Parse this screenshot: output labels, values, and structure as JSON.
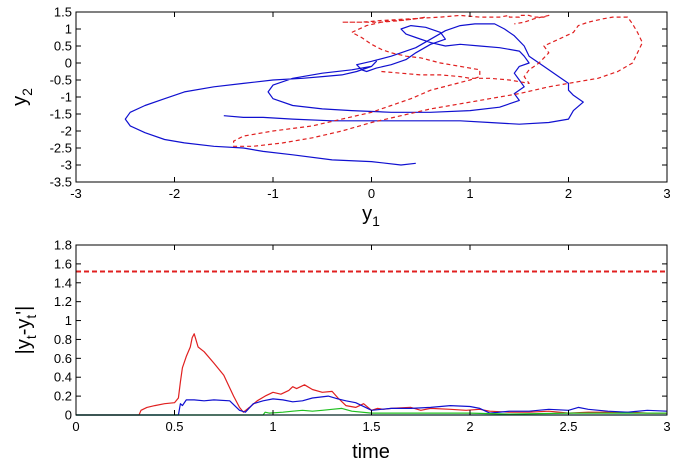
{
  "chart_data": [
    {
      "type": "line",
      "xlabel": "y",
      "xlabel_sub": "1",
      "ylabel": "y",
      "ylabel_sub": "2",
      "xlim": [
        -3,
        3
      ],
      "ylim": [
        -3.5,
        1.5
      ],
      "xticks": [
        "-3",
        "-2",
        "-1",
        "0",
        "1",
        "2",
        "3"
      ],
      "yticks": [
        "-3.5",
        "-3",
        "-2.5",
        "-2",
        "-1.5",
        "-1",
        "-0.5",
        "0",
        "0.5",
        "1",
        "1.5"
      ],
      "grid": false,
      "series": [
        {
          "color": "#1010d0",
          "style": "solid",
          "x": [
            0.45,
            0.3,
            0.0,
            -0.4,
            -0.8,
            -1.1,
            -1.3,
            -1.6,
            -1.9,
            -2.1,
            -2.3,
            -2.45,
            -2.5,
            -2.45,
            -2.3,
            -2.1,
            -1.9,
            -1.6,
            -1.3,
            -1.0,
            -0.7,
            -0.5,
            -0.3,
            -0.15,
            0.0,
            0.05,
            0.0,
            -0.2,
            -0.5,
            -0.8,
            -1.0,
            -1.05,
            -1.0,
            -0.8,
            -0.5,
            -0.2,
            0.2,
            0.6,
            1.0,
            1.3,
            1.5,
            1.45,
            1.55,
            1.5,
            1.45,
            1.5,
            1.6,
            1.55,
            1.5,
            1.3,
            1.1,
            0.9,
            0.75,
            0.6,
            0.45,
            0.35,
            0.3,
            0.4,
            0.55,
            0.7,
            0.75,
            0.6,
            0.45,
            0.35,
            0.2,
            0.05,
            -0.05,
            -0.1,
            -0.15,
            0.0,
            0.2,
            0.45,
            0.6,
            0.75,
            0.9,
            1.05,
            1.25,
            1.35,
            1.45,
            1.55,
            1.6,
            1.75,
            1.9,
            2.0,
            2.0,
            2.05,
            2.15,
            2.05,
            2.0,
            1.8,
            1.5,
            1.2,
            0.9,
            0.6,
            0.3,
            0.0,
            -0.4,
            -0.8,
            -1.1,
            -1.3,
            -1.5,
            -1.5
          ],
          "y": [
            -2.95,
            -3.0,
            -2.9,
            -2.85,
            -2.7,
            -2.6,
            -2.5,
            -2.45,
            -2.35,
            -2.25,
            -2.05,
            -1.85,
            -1.65,
            -1.45,
            -1.25,
            -1.05,
            -0.85,
            -0.7,
            -0.6,
            -0.5,
            -0.45,
            -0.4,
            -0.35,
            -0.25,
            -0.1,
            0.05,
            -0.1,
            -0.2,
            -0.3,
            -0.45,
            -0.65,
            -0.85,
            -1.05,
            -1.25,
            -1.35,
            -1.4,
            -1.45,
            -1.45,
            -1.4,
            -1.3,
            -1.1,
            -0.9,
            -0.7,
            -0.5,
            -0.3,
            -0.1,
            0.0,
            0.2,
            0.35,
            0.45,
            0.5,
            0.55,
            0.5,
            0.6,
            0.75,
            0.85,
            1.0,
            1.1,
            1.05,
            0.9,
            0.7,
            0.55,
            0.3,
            0.1,
            -0.05,
            -0.15,
            -0.25,
            -0.2,
            -0.05,
            0.05,
            0.2,
            0.45,
            0.7,
            0.95,
            1.1,
            1.15,
            1.15,
            1.0,
            0.8,
            0.5,
            0.2,
            -0.1,
            -0.4,
            -0.6,
            -0.8,
            -0.95,
            -1.15,
            -1.4,
            -1.65,
            -1.75,
            -1.8,
            -1.75,
            -1.7,
            -1.7,
            -1.7,
            -1.7,
            -1.7,
            -1.65,
            -1.6,
            -1.6,
            -1.55,
            -1.55
          ]
        },
        {
          "color": "#e02020",
          "style": "dashed",
          "x": [
            0.1,
            0.3,
            0.5,
            0.7,
            0.9,
            1.0,
            1.2,
            1.4,
            1.5,
            1.6,
            1.55,
            1.6,
            1.7,
            1.8,
            1.75,
            1.9,
            2.05,
            2.1,
            2.2,
            2.35,
            2.45,
            2.6,
            2.65,
            2.7,
            2.75,
            2.7,
            2.65,
            2.5,
            2.3,
            2.1,
            1.8,
            1.5,
            1.2,
            0.9,
            0.6,
            0.3,
            0.0,
            -0.3,
            -0.6,
            -0.9,
            -1.2,
            -1.4,
            -1.4,
            -1.3,
            -1.0,
            -0.6,
            -0.3,
            0.0,
            0.2,
            0.4,
            0.6,
            0.8,
            1.0,
            1.1,
            1.1,
            0.9,
            0.7,
            0.5,
            0.35,
            0.2,
            0.1,
            0.0,
            -0.1,
            -0.2,
            -0.05,
            0.1,
            0.2,
            0.3,
            0.45,
            0.55,
            0.55,
            0.45,
            0.3,
            0.1,
            -0.1,
            -0.3,
            -0.3,
            -0.1,
            0.1,
            0.4,
            0.7,
            0.9,
            1.1,
            1.3,
            1.4,
            1.4,
            1.5,
            1.5,
            1.6,
            1.65,
            1.75,
            1.8,
            1.65,
            1.55,
            1.45
          ],
          "y": [
            -0.25,
            -0.3,
            -0.35,
            -0.35,
            -0.4,
            -0.45,
            -0.45,
            -0.5,
            -0.55,
            -0.6,
            -0.4,
            -0.2,
            0.0,
            0.3,
            0.5,
            0.7,
            0.9,
            1.1,
            1.2,
            1.3,
            1.35,
            1.35,
            1.15,
            0.9,
            0.6,
            0.3,
            0.0,
            -0.25,
            -0.45,
            -0.55,
            -0.7,
            -0.9,
            -1.05,
            -1.2,
            -1.35,
            -1.55,
            -1.75,
            -2.0,
            -2.2,
            -2.35,
            -2.45,
            -2.45,
            -2.3,
            -2.15,
            -2.0,
            -1.85,
            -1.65,
            -1.45,
            -1.25,
            -1.05,
            -0.8,
            -0.65,
            -0.5,
            -0.4,
            -0.2,
            -0.1,
            0.0,
            0.15,
            0.2,
            0.3,
            0.4,
            0.55,
            0.75,
            0.9,
            1.1,
            1.2,
            1.25,
            1.25,
            1.3,
            1.35,
            1.35,
            1.3,
            1.25,
            1.2,
            1.2,
            1.2,
            1.2,
            1.2,
            1.25,
            1.3,
            1.35,
            1.4,
            1.35,
            1.35,
            1.4,
            1.35,
            1.35,
            1.4,
            1.4,
            1.35,
            1.35,
            1.4,
            1.3,
            1.2,
            1.15
          ]
        }
      ]
    },
    {
      "type": "line",
      "xlabel": "time",
      "ylabel": "|y",
      "ylabel_sub_a": "t",
      "ylabel_mid": "-y",
      "ylabel_sub_b": "t",
      "ylabel_tail": "'|",
      "xlim": [
        0,
        3
      ],
      "ylim": [
        0,
        1.8
      ],
      "xticks": [
        "0",
        "0.5",
        "1",
        "1.5",
        "2",
        "2.5",
        "3"
      ],
      "yticks": [
        "0",
        "0.2",
        "0.4",
        "0.6",
        "0.8",
        "1",
        "1.2",
        "1.4",
        "1.6",
        "1.8"
      ],
      "grid": false,
      "reference_line": {
        "y": 1.52,
        "color": "#e02020",
        "style": "dashed"
      },
      "series": [
        {
          "color": "#e02020",
          "x": [
            0,
            0.32,
            0.33,
            0.36,
            0.4,
            0.45,
            0.5,
            0.52,
            0.53,
            0.54,
            0.56,
            0.58,
            0.59,
            0.6,
            0.62,
            0.65,
            0.7,
            0.75,
            0.8,
            0.83,
            0.85,
            0.88,
            0.92,
            0.96,
            1.0,
            1.04,
            1.08,
            1.1,
            1.12,
            1.16,
            1.2,
            1.25,
            1.3,
            1.33,
            1.37,
            1.42,
            1.46,
            1.5,
            1.53,
            1.56,
            1.6,
            1.7,
            1.75,
            1.8,
            1.9,
            1.98,
            2.05,
            2.1,
            2.2,
            2.3,
            2.4,
            2.5,
            2.6,
            2.7,
            2.8,
            2.9,
            3.0
          ],
          "y": [
            0,
            0,
            0.05,
            0.08,
            0.1,
            0.12,
            0.13,
            0.18,
            0.35,
            0.5,
            0.62,
            0.72,
            0.82,
            0.86,
            0.72,
            0.67,
            0.55,
            0.42,
            0.2,
            0.08,
            0.03,
            0.08,
            0.15,
            0.2,
            0.24,
            0.22,
            0.26,
            0.3,
            0.28,
            0.32,
            0.27,
            0.24,
            0.25,
            0.18,
            0.1,
            0.08,
            0.12,
            0.05,
            0.07,
            0.06,
            0.07,
            0.08,
            0.05,
            0.07,
            0.06,
            0.05,
            0.06,
            0.04,
            0.03,
            0.03,
            0.04,
            0.02,
            0.03,
            0.03,
            0.03,
            0.02,
            0.02
          ]
        },
        {
          "color": "#1010d0",
          "x": [
            0,
            0.52,
            0.53,
            0.54,
            0.56,
            0.6,
            0.65,
            0.7,
            0.78,
            0.83,
            0.86,
            0.9,
            0.95,
            1.0,
            1.05,
            1.1,
            1.15,
            1.2,
            1.28,
            1.33,
            1.37,
            1.42,
            1.47,
            1.5,
            1.55,
            1.6,
            1.7,
            1.8,
            1.9,
            2.0,
            2.05,
            2.1,
            2.2,
            2.3,
            2.4,
            2.5,
            2.55,
            2.6,
            2.7,
            2.8,
            2.9,
            3.0
          ],
          "y": [
            0,
            0,
            0.12,
            0.1,
            0.16,
            0.16,
            0.15,
            0.16,
            0.15,
            0.05,
            0.03,
            0.12,
            0.15,
            0.17,
            0.16,
            0.14,
            0.15,
            0.18,
            0.2,
            0.17,
            0.15,
            0.13,
            0.08,
            0.05,
            0.06,
            0.07,
            0.07,
            0.08,
            0.1,
            0.09,
            0.07,
            0.02,
            0.04,
            0.04,
            0.06,
            0.05,
            0.08,
            0.06,
            0.04,
            0.03,
            0.05,
            0.04
          ]
        },
        {
          "color": "#20c020",
          "x": [
            0,
            0.95,
            0.96,
            0.98,
            1.05,
            1.1,
            1.15,
            1.2,
            1.25,
            1.3,
            1.35,
            1.4,
            1.5,
            1.6,
            1.8,
            2.0,
            2.2,
            2.5,
            2.8,
            3.0
          ],
          "y": [
            0,
            0,
            0.03,
            0.02,
            0.03,
            0.04,
            0.05,
            0.04,
            0.05,
            0.06,
            0.07,
            0.04,
            0.02,
            0.02,
            0.02,
            0.02,
            0.01,
            0.02,
            0.02,
            0.02
          ]
        },
        {
          "color": "#20c8c8",
          "x": [
            0,
            3.0
          ],
          "y": [
            0,
            0
          ]
        }
      ]
    }
  ]
}
